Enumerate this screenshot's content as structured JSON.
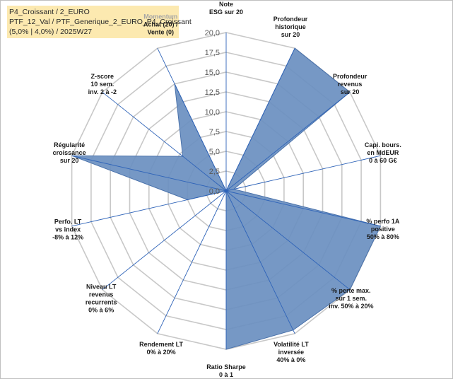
{
  "info_box": {
    "line1": "P4_Croissant / 2_EURO",
    "line2": "PTF_12_Val / PTF_Generique_2_EURO_P4_Croissant",
    "line3": "(5,0% | 4,0%) / 2025W27"
  },
  "chart_data": {
    "type": "radar",
    "rlim": [
      0,
      20
    ],
    "grid": true,
    "ticks": [
      "0,0",
      "2,5",
      "5,0",
      "7,5",
      "10,0",
      "12,5",
      "15,0",
      "17,5",
      "20,0"
    ],
    "tick_values": [
      0,
      2.5,
      5,
      7.5,
      10,
      12.5,
      15,
      17.5,
      20
    ],
    "axes": [
      {
        "lines": [
          "Note",
          "ESG sur 20"
        ],
        "value": 0
      },
      {
        "lines": [
          "Profondeur",
          "historique",
          "sur 20"
        ],
        "value": 20
      },
      {
        "lines": [
          "Profondeur",
          "revenus",
          "sur 20"
        ],
        "value": 20
      },
      {
        "lines": [
          "Capi. bours.",
          "en MdEUR",
          "0 à 60 G€"
        ],
        "value": 1
      },
      {
        "lines": [
          "% perfo 1A",
          "positive",
          "50% à 80%"
        ],
        "value": 20
      },
      {
        "lines": [
          "% perte max.",
          "sur 1 sem.",
          "inv. 50% à 20%"
        ],
        "value": 20
      },
      {
        "lines": [
          "Volatilité LT",
          "inversée",
          "40% à 0%"
        ],
        "value": 19.5
      },
      {
        "lines": [
          "Ratio Sharpe",
          "0 à 1"
        ],
        "value": 20
      },
      {
        "lines": [
          "Rendement LT",
          "0% à 20%"
        ],
        "value": 0
      },
      {
        "lines": [
          "Niveau LT",
          "revenus",
          "recurrents",
          "0% à 6%"
        ],
        "value": 0
      },
      {
        "lines": [
          "Perfo. LT",
          "vs index",
          "-8% à 12%"
        ],
        "value": 5
      },
      {
        "lines": [
          "Régularité",
          "croissance",
          "sur 20"
        ],
        "value": 20
      },
      {
        "lines": [
          "Z-score",
          "10 sem.",
          "inv. 2 à -2"
        ],
        "value": 7
      },
      {
        "lines": [
          "Momentum",
          "Achat (20) /",
          "Vente (0)"
        ],
        "value": 15
      }
    ],
    "colors": {
      "fill": "#6a8fc0",
      "stroke": "#4a72ab",
      "axis": "#2e63b8",
      "grid": "#c8c8c8",
      "info_bg": "#fce9b0"
    }
  }
}
